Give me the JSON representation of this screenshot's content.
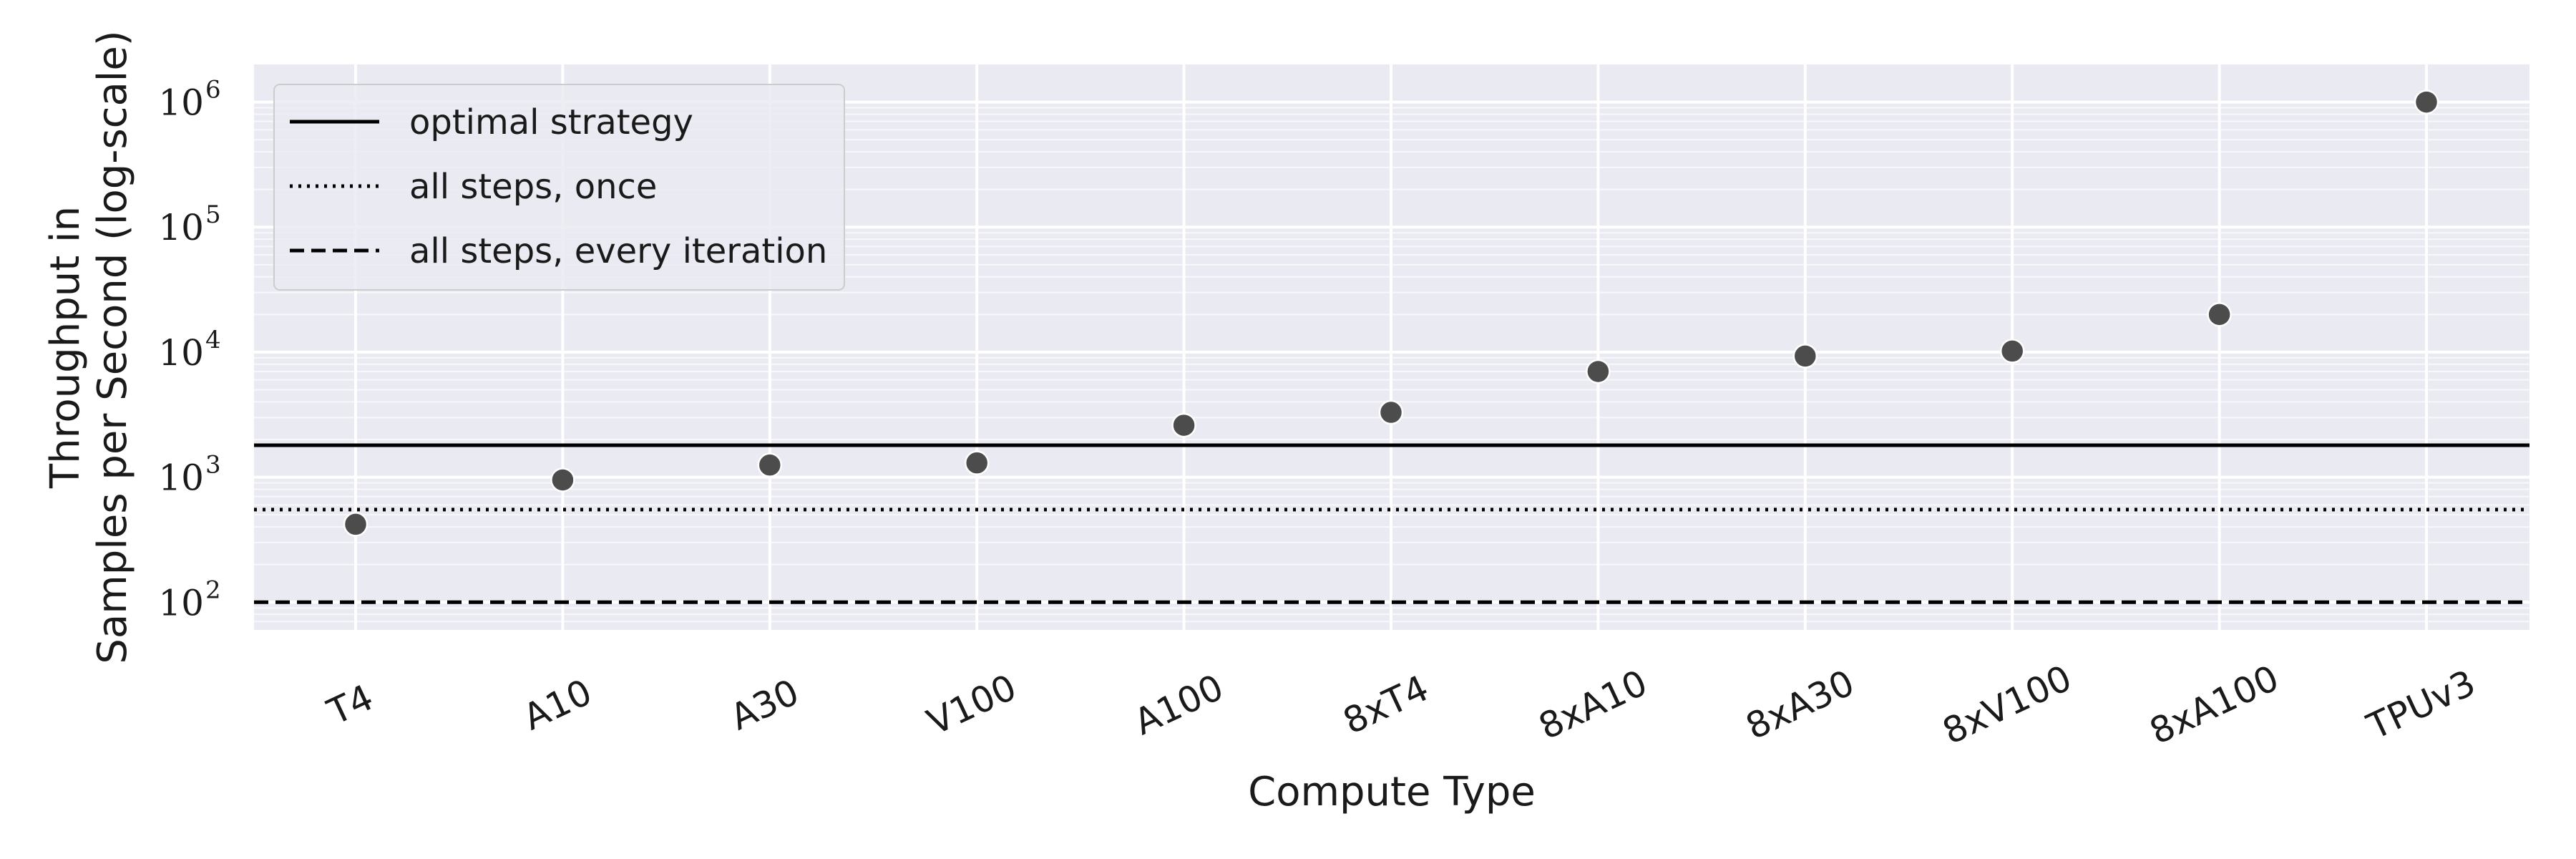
{
  "chart_data": {
    "type": "scatter",
    "title": "",
    "xlabel": "Compute Type",
    "ylabel_line1": "Throughput in",
    "ylabel_line2": "Samples per Second (log-scale)",
    "categories": [
      "T4",
      "A10",
      "A30",
      "V100",
      "A100",
      "8xT4",
      "8xA10",
      "8xA30",
      "8xV100",
      "8xA100",
      "TPUv3"
    ],
    "values": [
      420,
      950,
      1250,
      1300,
      2600,
      3300,
      7000,
      9300,
      10200,
      20000,
      1000000
    ],
    "yscale": "log",
    "ylim": [
      60,
      2000000
    ],
    "yticks": [
      {
        "base": "10",
        "exp": "2"
      },
      {
        "base": "10",
        "exp": "3"
      },
      {
        "base": "10",
        "exp": "4"
      },
      {
        "base": "10",
        "exp": "5"
      },
      {
        "base": "10",
        "exp": "6"
      }
    ],
    "reference_lines": [
      {
        "name": "optimal strategy",
        "value": 1800,
        "style": "solid"
      },
      {
        "name": "all steps, once",
        "value": 550,
        "style": "dotted"
      },
      {
        "name": "all steps, every iteration",
        "value": 100,
        "style": "dashed"
      }
    ],
    "grid": true,
    "legend_position": "top-left",
    "colors": {
      "background": "#eaeaf2",
      "grid": "#ffffff",
      "marker": "#4c4c4c",
      "line": "#000000"
    }
  }
}
